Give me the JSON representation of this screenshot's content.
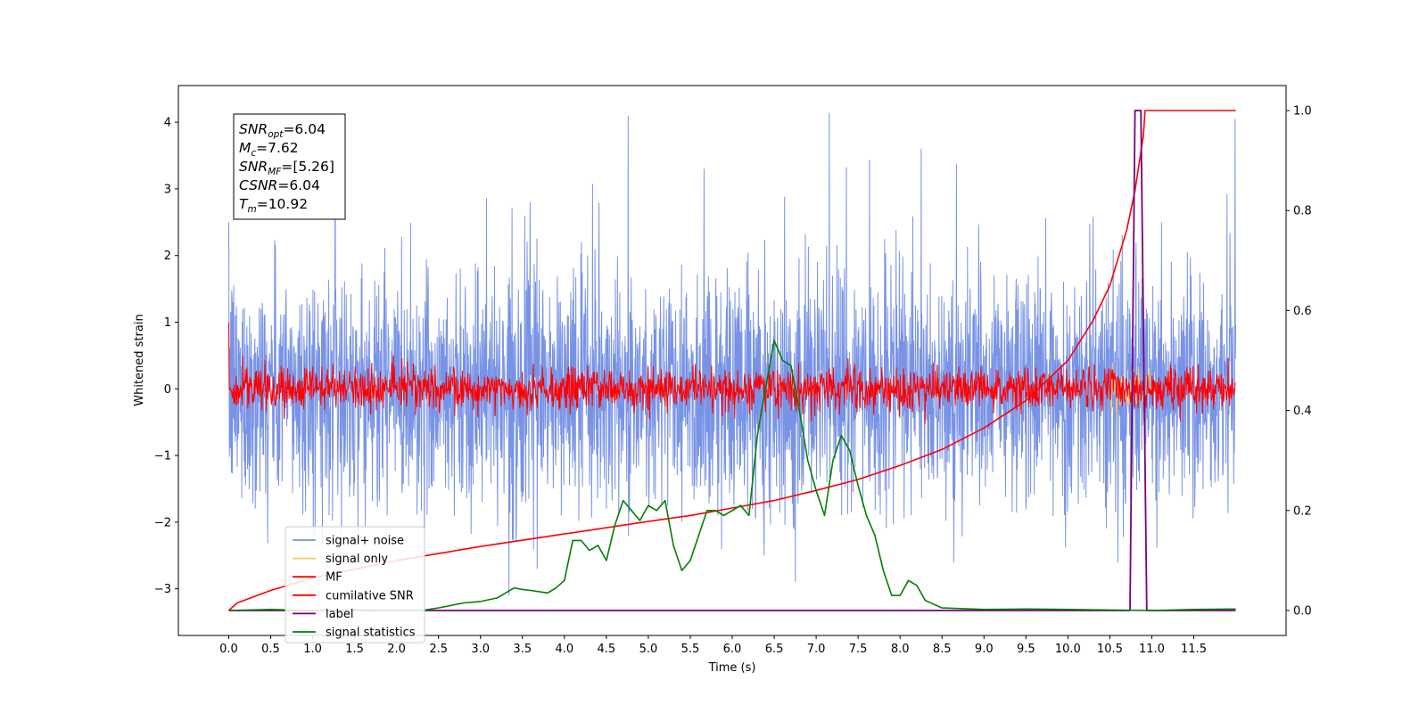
{
  "chart_data": {
    "type": "line",
    "title": "",
    "xlabel": "Time (s)",
    "ylabel": "Whitened strain",
    "ylabel_right": "",
    "xlim": [
      -0.6,
      12.6
    ],
    "ylim": [
      -3.7,
      4.55
    ],
    "ylim_right": [
      -0.05,
      1.05
    ],
    "x_ticks": [
      "0.0",
      "0.5",
      "1.0",
      "1.5",
      "2.0",
      "2.5",
      "3.0",
      "3.5",
      "4.0",
      "4.5",
      "5.0",
      "5.5",
      "6.0",
      "6.5",
      "7.0",
      "7.5",
      "8.0",
      "8.5",
      "9.0",
      "9.5",
      "10.0",
      "10.5",
      "11.0",
      "11.5"
    ],
    "y_ticks": [
      "−3",
      "−2",
      "−1",
      "0",
      "1",
      "2",
      "3",
      "4"
    ],
    "y_ticks_right": [
      "0.0",
      "0.2",
      "0.4",
      "0.6",
      "0.8",
      "1.0"
    ],
    "grid": false,
    "legend_position": "lower-left",
    "annotation": {
      "lines": [
        {
          "main": "SNR",
          "sub": "opt",
          "value": "=6.04"
        },
        {
          "main": "M",
          "sub": "c",
          "value": "=7.62"
        },
        {
          "main": "SNR",
          "sub": "MF",
          "value": "=[5.26]"
        },
        {
          "main": "CSNR",
          "sub": "",
          "value": "=6.04"
        },
        {
          "main": "T",
          "sub": "m",
          "value": "=10.92"
        }
      ]
    },
    "series": [
      {
        "name": "signal+ noise",
        "color": "#7893e6",
        "axis": "left",
        "kind": "noise",
        "x_range": [
          0,
          12
        ],
        "center": 0.0,
        "std": 0.9,
        "peak_max": 4.15,
        "trough_min": -3.1
      },
      {
        "name": "signal only",
        "color": "#f5c76a",
        "axis": "left",
        "kind": "noise",
        "x_range": [
          10.5,
          11.0
        ],
        "center": 0.0,
        "std": 0.2
      },
      {
        "name": "MF",
        "color": "#ff0000",
        "axis": "left",
        "kind": "noise",
        "x_range": [
          0,
          12
        ],
        "center": 0.0,
        "std": 0.16,
        "start_value": 1.0
      },
      {
        "name": "cumilative SNR",
        "color": "#ff0000",
        "axis": "right",
        "x": [
          0.0,
          0.1,
          0.5,
          1.0,
          2.0,
          3.0,
          4.0,
          5.0,
          5.5,
          6.0,
          6.5,
          7.0,
          7.5,
          8.0,
          8.5,
          9.0,
          9.5,
          10.0,
          10.3,
          10.5,
          10.7,
          10.8,
          10.9,
          10.92,
          12.0
        ],
        "y": [
          0.0,
          0.015,
          0.04,
          0.065,
          0.1,
          0.128,
          0.153,
          0.178,
          0.19,
          0.205,
          0.22,
          0.24,
          0.262,
          0.29,
          0.322,
          0.365,
          0.42,
          0.5,
          0.58,
          0.65,
          0.76,
          0.84,
          0.95,
          1.0,
          1.0
        ]
      },
      {
        "name": "label",
        "color": "#7b007b",
        "axis": "right",
        "x": [
          0.0,
          10.74,
          10.8,
          10.8,
          10.87,
          10.87,
          10.94,
          12.0
        ],
        "y": [
          0.0,
          0.0,
          1.0,
          1.0,
          1.0,
          1.0,
          0.0,
          0.0
        ]
      },
      {
        "name": "signal statistics",
        "color": "#008000",
        "axis": "right",
        "x": [
          0.0,
          0.5,
          1.0,
          1.5,
          2.0,
          2.3,
          2.5,
          2.8,
          3.0,
          3.2,
          3.4,
          3.5,
          3.6,
          3.8,
          3.9,
          4.0,
          4.1,
          4.2,
          4.3,
          4.4,
          4.5,
          4.6,
          4.7,
          4.8,
          4.9,
          5.0,
          5.1,
          5.2,
          5.3,
          5.4,
          5.5,
          5.6,
          5.7,
          5.8,
          5.9,
          6.0,
          6.1,
          6.2,
          6.3,
          6.35,
          6.5,
          6.55,
          6.6,
          6.7,
          6.8,
          6.9,
          7.0,
          7.1,
          7.2,
          7.3,
          7.4,
          7.5,
          7.6,
          7.7,
          7.8,
          7.9,
          8.0,
          8.1,
          8.2,
          8.3,
          8.5,
          9.0,
          9.5,
          10.0,
          10.5,
          11.0,
          11.5,
          12.0
        ],
        "y": [
          0.0,
          0.002,
          0.0,
          0.001,
          0.0,
          0.0,
          0.005,
          0.015,
          0.018,
          0.025,
          0.045,
          0.042,
          0.04,
          0.035,
          0.045,
          0.06,
          0.14,
          0.14,
          0.12,
          0.13,
          0.1,
          0.17,
          0.22,
          0.2,
          0.18,
          0.21,
          0.2,
          0.22,
          0.13,
          0.08,
          0.1,
          0.15,
          0.2,
          0.2,
          0.19,
          0.2,
          0.21,
          0.19,
          0.35,
          0.4,
          0.54,
          0.52,
          0.5,
          0.49,
          0.4,
          0.3,
          0.24,
          0.19,
          0.3,
          0.35,
          0.32,
          0.25,
          0.19,
          0.15,
          0.08,
          0.03,
          0.03,
          0.06,
          0.05,
          0.02,
          0.005,
          0.002,
          0.003,
          0.002,
          0.001,
          0.0,
          0.002,
          0.003
        ]
      }
    ]
  }
}
